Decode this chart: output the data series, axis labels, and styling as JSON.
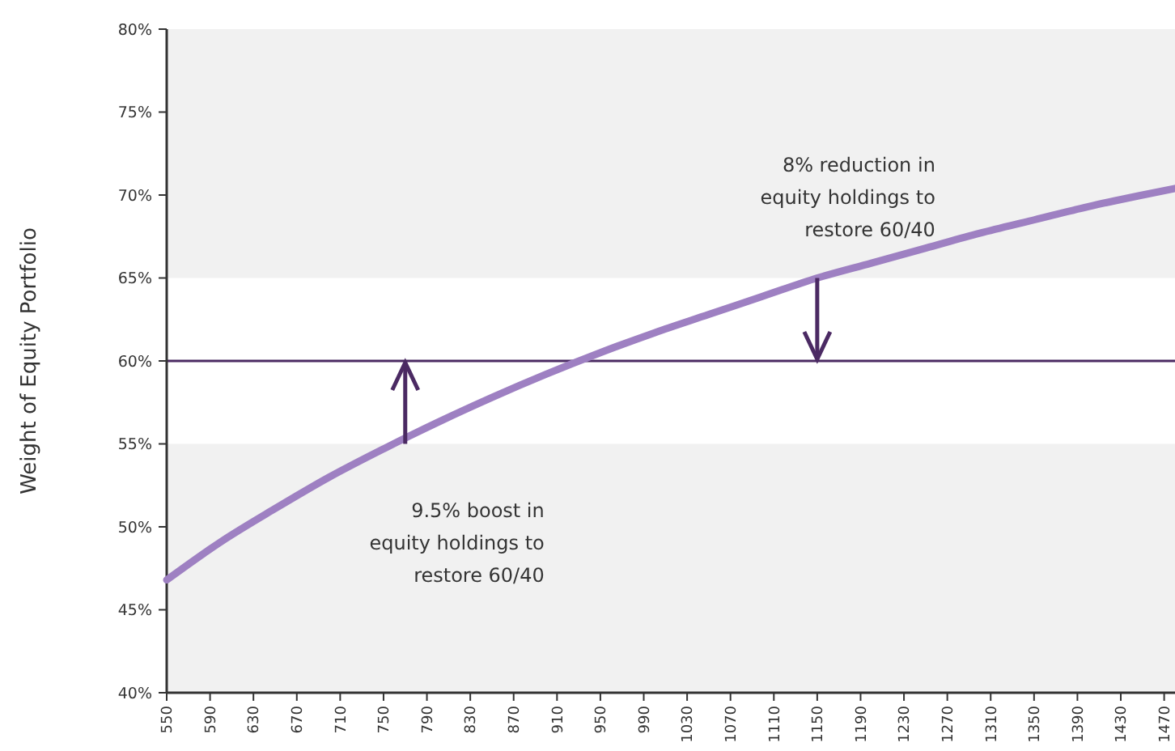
{
  "chart_data": {
    "type": "line",
    "ylabel": "Weight of Equity Portfolio",
    "xlim": [
      550,
      1480
    ],
    "ylim": [
      40,
      80
    ],
    "xticks": [
      550,
      590,
      630,
      670,
      710,
      750,
      790,
      830,
      870,
      910,
      950,
      990,
      1030,
      1070,
      1110,
      1150,
      1190,
      1230,
      1270,
      1310,
      1350,
      1390,
      1430,
      1470
    ],
    "yticks": [
      {
        "value": 40,
        "label": "40%"
      },
      {
        "value": 45,
        "label": "45%"
      },
      {
        "value": 50,
        "label": "50%"
      },
      {
        "value": 55,
        "label": "55%"
      },
      {
        "value": 60,
        "label": "60%"
      },
      {
        "value": 65,
        "label": "65%"
      },
      {
        "value": 70,
        "label": "70%"
      },
      {
        "value": 75,
        "label": "75%"
      },
      {
        "value": 80,
        "label": "80%"
      }
    ],
    "x": [
      550,
      600,
      650,
      700,
      750,
      800,
      850,
      900,
      950,
      1000,
      1050,
      1100,
      1150,
      1200,
      1250,
      1300,
      1350,
      1400,
      1450,
      1480
    ],
    "series": [
      {
        "color": "#9e80c2",
        "values": [
          46.8,
          49.1,
          51.1,
          53.0,
          54.7,
          56.3,
          57.8,
          59.2,
          60.5,
          61.7,
          62.8,
          63.9,
          65.0,
          65.9,
          66.8,
          67.7,
          68.5,
          69.3,
          70.0,
          70.4
        ]
      }
    ],
    "ref_lines": [
      {
        "axis": "y",
        "value": 60,
        "color": "#4b2a63"
      }
    ],
    "bands": [
      {
        "axis": "y",
        "from": 40,
        "to": 55,
        "color": "#f1f1f1"
      },
      {
        "axis": "y",
        "from": 65,
        "to": 80,
        "color": "#f1f1f1"
      }
    ],
    "annotations": [
      {
        "text": "9.5% boost in\nequity holdings to\nrestore 60/40",
        "x": 770,
        "y": 55
      },
      {
        "text": "8% reduction in\nequity holdings to\nrestore 60/40",
        "x": 1150,
        "y": 65
      }
    ]
  }
}
